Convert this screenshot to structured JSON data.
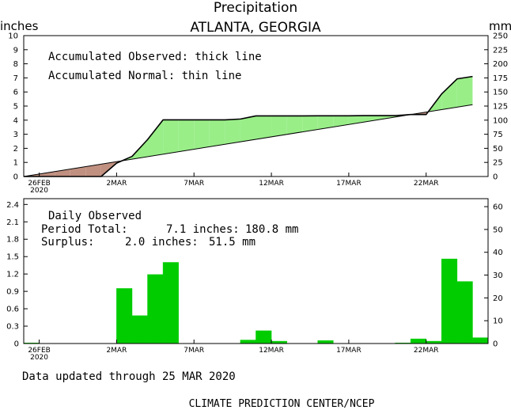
{
  "header": {
    "title": "Precipitation",
    "subtitle": "ATLANTA, GEORGIA",
    "unit_left": "inches",
    "unit_right": "mm"
  },
  "footer": {
    "updated": "Data updated through 25 MAR 2020",
    "credit": "CLIMATE PREDICTION CENTER/NCEP"
  },
  "colors": {
    "surplus": "#99ee88",
    "deficit": "#c09080",
    "bars": "#00cc00",
    "line": "#000000"
  },
  "chart_data": [
    {
      "type": "area",
      "notes": [
        "Accumulated Observed: thick line",
        "Accumulated Normal: thin line"
      ],
      "x_tick_labels": [
        "26FEB",
        "2MAR",
        "7MAR",
        "12MAR",
        "17MAR",
        "22MAR"
      ],
      "x_tick_sublabel": "2020",
      "x_ticks_day_index": [
        0,
        5,
        10,
        15,
        20,
        25
      ],
      "x_range_day_index": [
        -1,
        29
      ],
      "ylim_inches": [
        0,
        10
      ],
      "y_ticks_inches": [
        0,
        1,
        2,
        3,
        4,
        5,
        6,
        7,
        8,
        9,
        10
      ],
      "ylim_mm": [
        0,
        250
      ],
      "y_ticks_mm": [
        0,
        25,
        50,
        75,
        100,
        125,
        150,
        175,
        200,
        225,
        250
      ],
      "series": [
        {
          "name": "Accumulated Observed",
          "day_index": [
            -1,
            0,
            1,
            2,
            3,
            4,
            5,
            6,
            7,
            8,
            9,
            10,
            11,
            12,
            13,
            14,
            15,
            16,
            17,
            18,
            19,
            20,
            21,
            22,
            23,
            24,
            25,
            26,
            27,
            28
          ],
          "inches": [
            0,
            0,
            0,
            0,
            0,
            0,
            0.95,
            1.43,
            2.62,
            4.02,
            4.02,
            4.02,
            4.02,
            4.02,
            4.08,
            4.3,
            4.3,
            4.3,
            4.3,
            4.31,
            4.31,
            4.31,
            4.32,
            4.32,
            4.32,
            4.4,
            4.4,
            5.86,
            6.93,
            7.1
          ]
        },
        {
          "name": "Accumulated Normal",
          "day_index": [
            -1,
            28
          ],
          "inches": [
            0,
            5.1
          ]
        }
      ]
    },
    {
      "type": "bar",
      "notes": [
        "Daily Observed"
      ],
      "period_total_label": "Period Total:",
      "period_total_inches": "7.1 inches:",
      "period_total_mm": "180.8 mm",
      "surplus_label": "Surplus:",
      "surplus_inches": "2.0 inches:",
      "surplus_mm": "51.5 mm",
      "x_tick_labels": [
        "26FEB",
        "2MAR",
        "7MAR",
        "12MAR",
        "17MAR",
        "22MAR"
      ],
      "x_tick_sublabel": "2020",
      "x_ticks_day_index": [
        0,
        5,
        10,
        15,
        20,
        25
      ],
      "ylim_inches": [
        0,
        2.5
      ],
      "y_ticks_inches": [
        "0",
        "0.3",
        "0.6",
        "0.9",
        "1.2",
        "1.5",
        "1.8",
        "2.1",
        "2.4"
      ],
      "ylim_mm": [
        0,
        63.5
      ],
      "y_ticks_mm": [
        0,
        10,
        20,
        30,
        40,
        50,
        60
      ],
      "day_index": [
        -1,
        0,
        1,
        2,
        3,
        4,
        5,
        6,
        7,
        8,
        9,
        10,
        11,
        12,
        13,
        14,
        15,
        16,
        17,
        18,
        19,
        20,
        21,
        22,
        23,
        24,
        25,
        26,
        27,
        28
      ],
      "values_inches": [
        0.01,
        0,
        0,
        0,
        0,
        0,
        0.95,
        0.48,
        1.19,
        1.4,
        0,
        0,
        0,
        0,
        0.06,
        0.22,
        0.04,
        0,
        0,
        0.05,
        0,
        0,
        0,
        0,
        0.01,
        0.08,
        0.04,
        1.46,
        1.07,
        0.1
      ]
    }
  ]
}
